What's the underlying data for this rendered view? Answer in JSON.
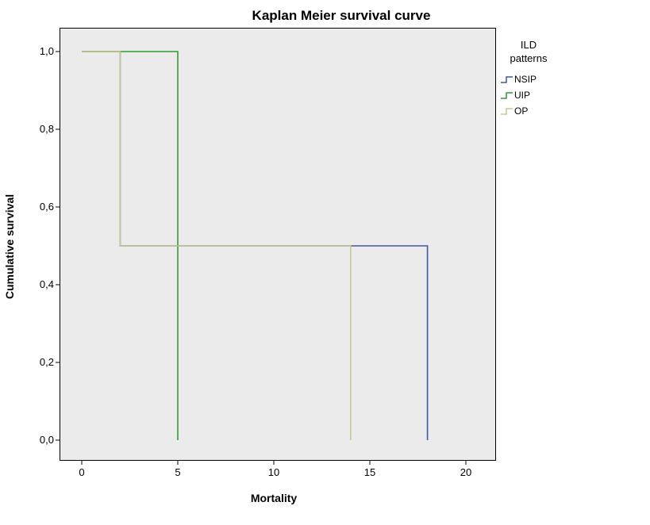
{
  "page": {
    "background": "#ffffff"
  },
  "chart_data": {
    "type": "line",
    "subtype": "kaplan-meier-step",
    "title": "Kaplan Meier survival curve",
    "xlabel": "Mortality",
    "ylabel": "Cumulative survival",
    "xlim": [
      0,
      20
    ],
    "ylim": [
      0,
      1
    ],
    "plot_bg": "#ebebeb",
    "plot_border_color": "#000000",
    "grid": false,
    "x_ticks": {
      "values": [
        0,
        5,
        10,
        15,
        20
      ],
      "labels": [
        "0",
        "5",
        "10",
        "15",
        "20"
      ]
    },
    "y_ticks": {
      "values": [
        0.0,
        0.2,
        0.4,
        0.6,
        0.8,
        1.0
      ],
      "labels": [
        "0,0",
        "0,2",
        "0,4",
        "0,6",
        "0,8",
        "1,0"
      ]
    },
    "legend": {
      "position": "right",
      "title_lines": [
        "ILD",
        "patterns"
      ]
    },
    "series": [
      {
        "name": "NSIP",
        "color": "#4456a0",
        "points": [
          [
            0,
            1.0
          ],
          [
            2,
            1.0
          ],
          [
            2,
            0.5
          ],
          [
            18,
            0.5
          ],
          [
            18,
            0.0
          ]
        ]
      },
      {
        "name": "UIP",
        "color": "#2f9b33",
        "points": [
          [
            0,
            1.0
          ],
          [
            5,
            1.0
          ],
          [
            5,
            0.0
          ]
        ]
      },
      {
        "name": "OP",
        "color": "#c9c893",
        "points": [
          [
            0,
            1.0
          ],
          [
            2,
            1.0
          ],
          [
            2,
            0.5
          ],
          [
            14,
            0.5
          ],
          [
            14,
            0.0
          ]
        ]
      }
    ]
  }
}
